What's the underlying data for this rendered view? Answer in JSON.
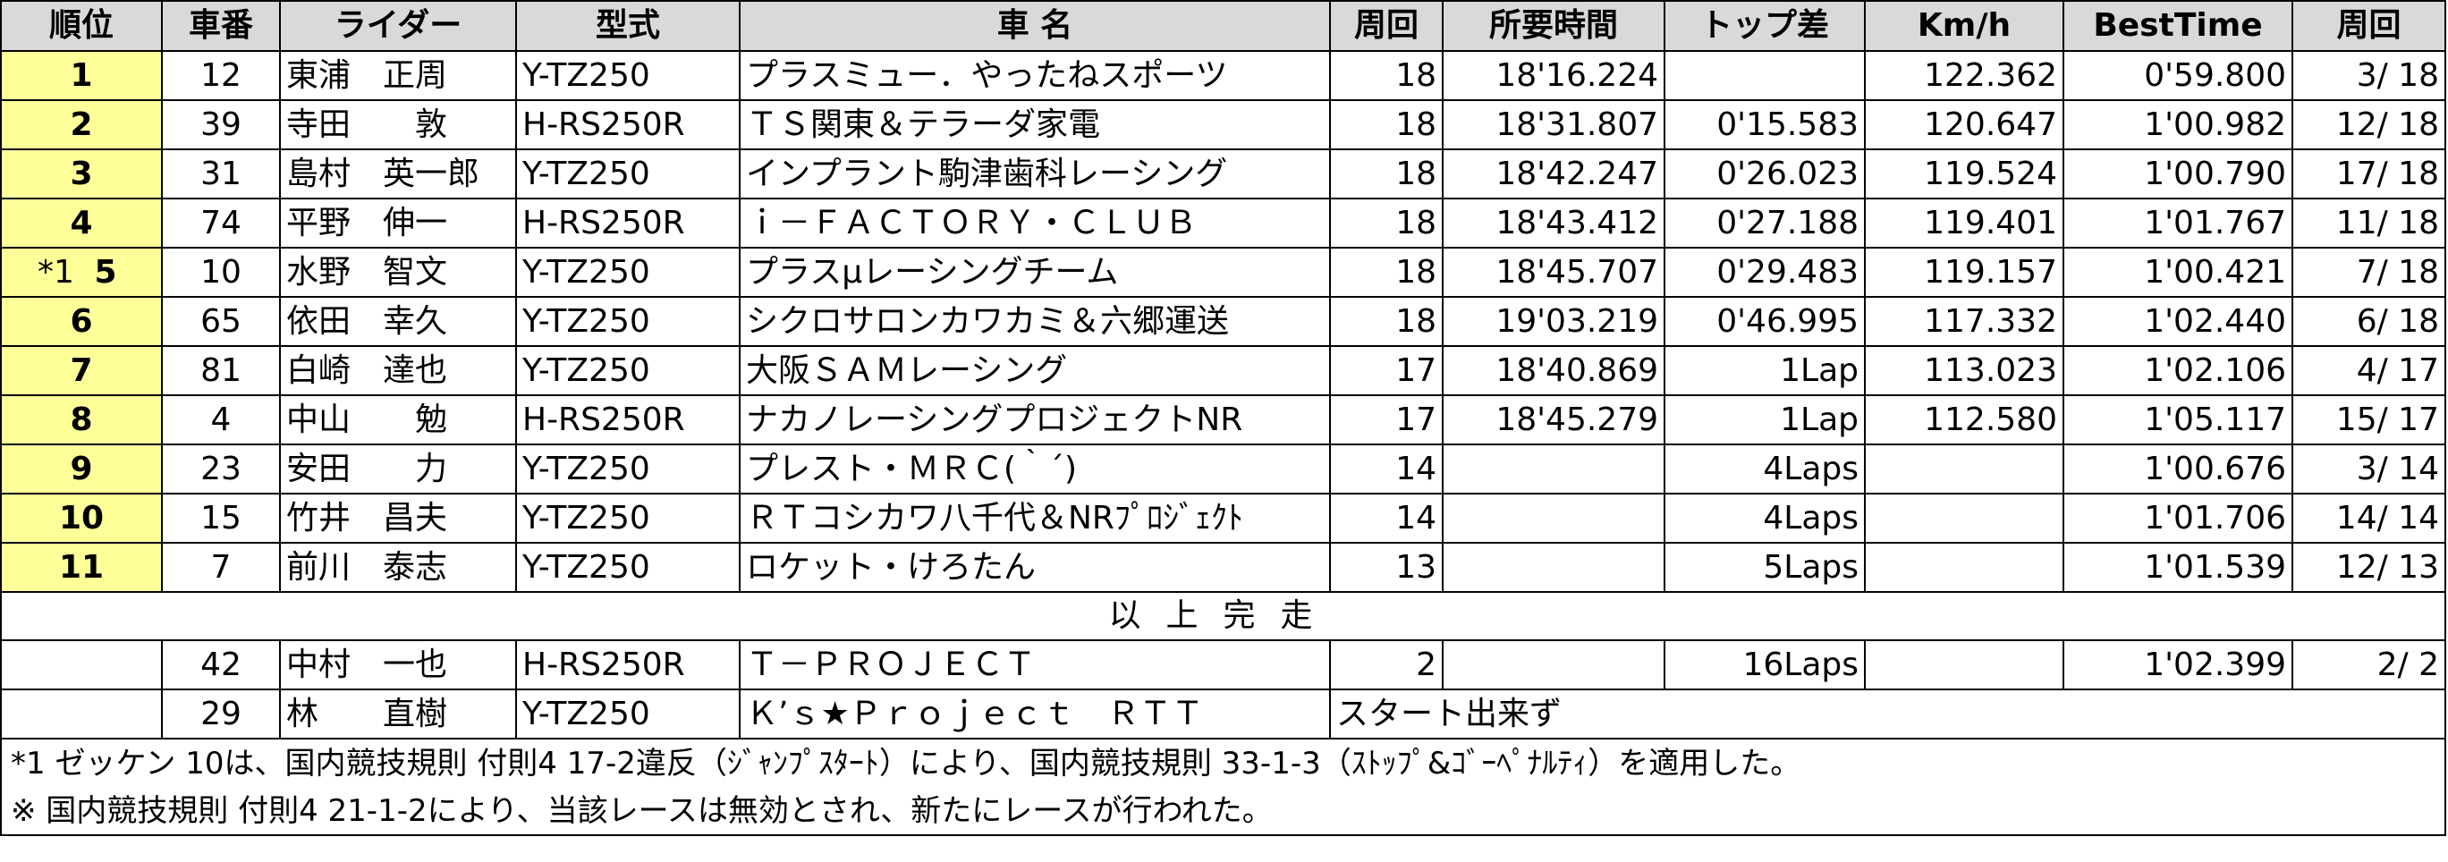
{
  "headers": [
    "順位",
    "車番",
    "ライダー",
    "型式",
    "車 名",
    "周回",
    "所要時間",
    "トップ差",
    "Km/h",
    "BestTime",
    "周回"
  ],
  "rows": [
    {
      "pos": "1",
      "note": "",
      "num": "12",
      "rider": "東浦　正周",
      "model": "Y-TZ250",
      "team": "プラスミュー．やったねスポーツ",
      "laps": "18",
      "time": "18'16.224",
      "gap": "",
      "speed": "122.362",
      "best": "0'59.800",
      "bestlap": "3/ 18"
    },
    {
      "pos": "2",
      "note": "",
      "num": "39",
      "rider": "寺田　　敦",
      "model": "H-RS250R",
      "team": "ＴＳ関東＆テラーダ家電",
      "laps": "18",
      "time": "18'31.807",
      "gap": "0'15.583",
      "speed": "120.647",
      "best": "1'00.982",
      "bestlap": "12/ 18"
    },
    {
      "pos": "3",
      "note": "",
      "num": "31",
      "rider": "島村　英一郎",
      "model": "Y-TZ250",
      "team": "インプラント駒津歯科レーシング",
      "laps": "18",
      "time": "18'42.247",
      "gap": "0'26.023",
      "speed": "119.524",
      "best": "1'00.790",
      "bestlap": "17/ 18"
    },
    {
      "pos": "4",
      "note": "",
      "num": "74",
      "rider": "平野　伸一",
      "model": "H-RS250R",
      "team": "ｉ－ＦＡＣＴＯＲＹ・ＣＬＵＢ",
      "laps": "18",
      "time": "18'43.412",
      "gap": "0'27.188",
      "speed": "119.401",
      "best": "1'01.767",
      "bestlap": "11/ 18"
    },
    {
      "pos": "5",
      "note": "*1",
      "num": "10",
      "rider": "水野　智文",
      "model": "Y-TZ250",
      "team": "プラスμレーシングチーム",
      "laps": "18",
      "time": "18'45.707",
      "gap": "0'29.483",
      "speed": "119.157",
      "best": "1'00.421",
      "bestlap": "7/ 18"
    },
    {
      "pos": "6",
      "note": "",
      "num": "65",
      "rider": "依田　幸久",
      "model": "Y-TZ250",
      "team": "シクロサロンカワカミ＆六郷運送",
      "laps": "18",
      "time": "19'03.219",
      "gap": "0'46.995",
      "speed": "117.332",
      "best": "1'02.440",
      "bestlap": "6/ 18"
    },
    {
      "pos": "7",
      "note": "",
      "num": "81",
      "rider": "白崎　達也",
      "model": "Y-TZ250",
      "team": "大阪ＳＡＭレーシング",
      "laps": "17",
      "time": "18'40.869",
      "gap": "1Lap",
      "speed": "113.023",
      "best": "1'02.106",
      "bestlap": "4/ 17"
    },
    {
      "pos": "8",
      "note": "",
      "num": "4",
      "rider": "中山　　勉",
      "model": "H-RS250R",
      "team": "ナカノレーシングプロジェクトNR",
      "laps": "17",
      "time": "18'45.279",
      "gap": "1Lap",
      "speed": "112.580",
      "best": "1'05.117",
      "bestlap": "15/ 17"
    },
    {
      "pos": "9",
      "note": "",
      "num": "23",
      "rider": "安田　　力",
      "model": "Y-TZ250",
      "team": "プレスト・ＭＲＣ(｀´)",
      "laps": "14",
      "time": "",
      "gap": "4Laps",
      "speed": "",
      "best": "1'00.676",
      "bestlap": "3/ 14"
    },
    {
      "pos": "10",
      "note": "",
      "num": "15",
      "rider": "竹井　昌夫",
      "model": "Y-TZ250",
      "team": "ＲＴコシカワ八千代＆NRﾌﾟﾛｼﾞｪｸﾄ",
      "laps": "14",
      "time": "",
      "gap": "4Laps",
      "speed": "",
      "best": "1'01.706",
      "bestlap": "14/ 14"
    },
    {
      "pos": "11",
      "note": "",
      "num": "7",
      "rider": "前川　泰志",
      "model": "Y-TZ250",
      "team": "ロケット・けろたん",
      "laps": "13",
      "time": "",
      "gap": "5Laps",
      "speed": "",
      "best": "1'01.539",
      "bestlap": "12/ 13"
    }
  ],
  "separator": "以上完走",
  "dnf_rows": [
    {
      "num": "42",
      "rider": "中村　一也",
      "model": "H-RS250R",
      "team": "Ｔ－ＰＲＯＪＥＣＴ",
      "laps": "2",
      "time": "",
      "gap": "16Laps",
      "speed": "",
      "best": "1'02.399",
      "bestlap": "2/ 2"
    }
  ],
  "dns_row": {
    "num": "29",
    "rider": "林　　直樹",
    "model": "Y-TZ250",
    "team": "Ｋ’ｓ★Ｐｒｏｊｅｃｔ　ＲＴＴ",
    "status": "スタート出来ず"
  },
  "footnotes": [
    "*1 ゼッケン 10は、国内競技規則 付則4 17-2違反（ｼﾞｬﾝﾌﾟｽﾀｰﾄ）により、国内競技規則 33-1-3（ｽﾄｯﾌﾟ&ｺﾞｰﾍﾟﾅﾙﾃｨ）を適用した。",
    "※ 国内競技規則 付則4 21-1-2により、当該レースは無効とされ、新たにレースが行われた。"
  ]
}
